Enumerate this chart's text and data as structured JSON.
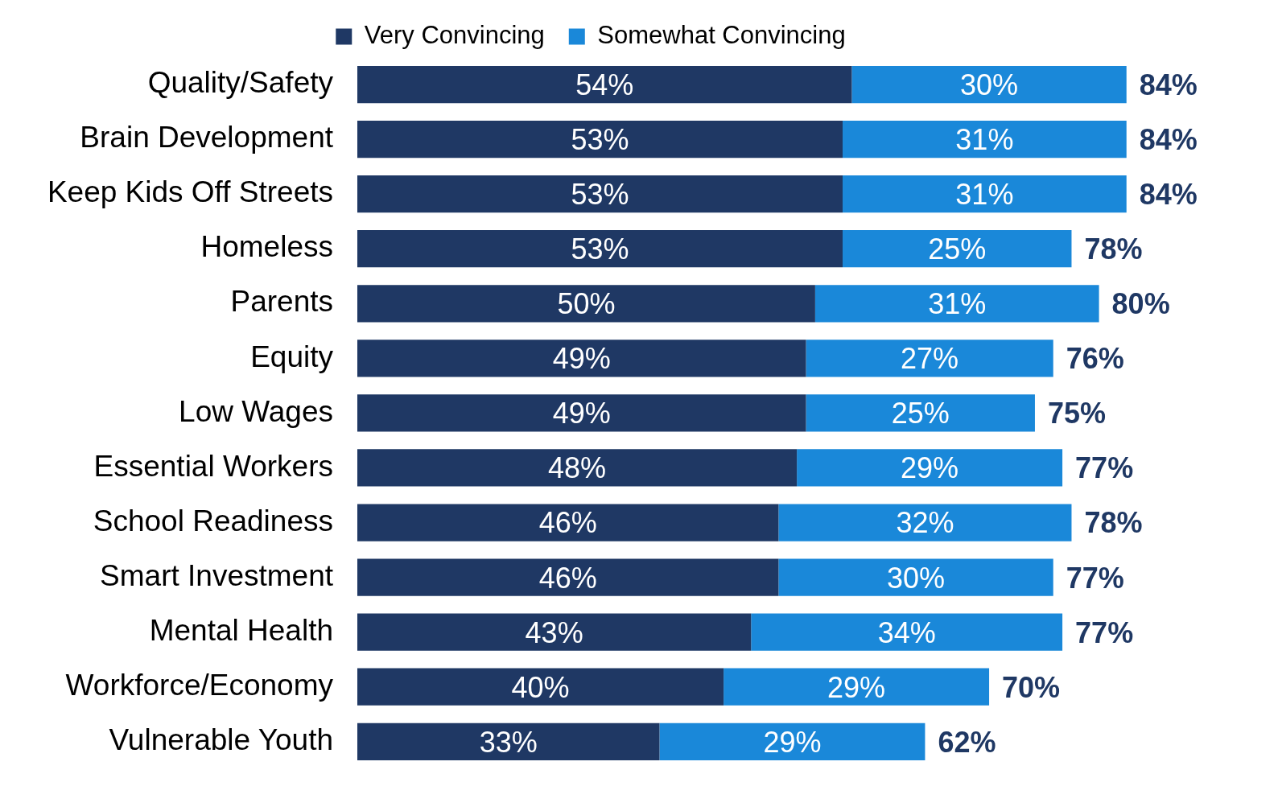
{
  "chart_data": {
    "type": "bar",
    "orientation": "horizontal",
    "stacked": true,
    "legend": "top",
    "grid": false,
    "tick_labels": "y",
    "categories": [
      "Quality/Safety",
      "Brain Development",
      "Keep Kids Off Streets",
      "Homeless",
      "Parents",
      "Equity",
      "Low Wages",
      "Essential Workers",
      "School Readiness",
      "Smart Investment",
      "Mental Health",
      "Workforce/Economy",
      "Vulnerable Youth"
    ],
    "series": [
      {
        "name": "Very Convincing",
        "color": "#1f3864",
        "values": [
          54,
          53,
          53,
          53,
          50,
          49,
          49,
          48,
          46,
          46,
          43,
          40,
          33
        ],
        "value_labels": [
          "54%",
          "53%",
          "53%",
          "53%",
          "50%",
          "49%",
          "49%",
          "48%",
          "46%",
          "46%",
          "43%",
          "40%",
          "33%"
        ]
      },
      {
        "name": "Somewhat Convincing",
        "color": "#1a88d9",
        "values": [
          30,
          31,
          31,
          25,
          31,
          27,
          25,
          29,
          32,
          30,
          34,
          29,
          29
        ],
        "value_labels": [
          "30%",
          "31%",
          "31%",
          "25%",
          "31%",
          "27%",
          "25%",
          "29%",
          "32%",
          "30%",
          "34%",
          "29%",
          "29%"
        ]
      }
    ],
    "totals": [
      "84%",
      "84%",
      "84%",
      "78%",
      "80%",
      "76%",
      "75%",
      "77%",
      "78%",
      "77%",
      "77%",
      "70%",
      "62%"
    ]
  }
}
